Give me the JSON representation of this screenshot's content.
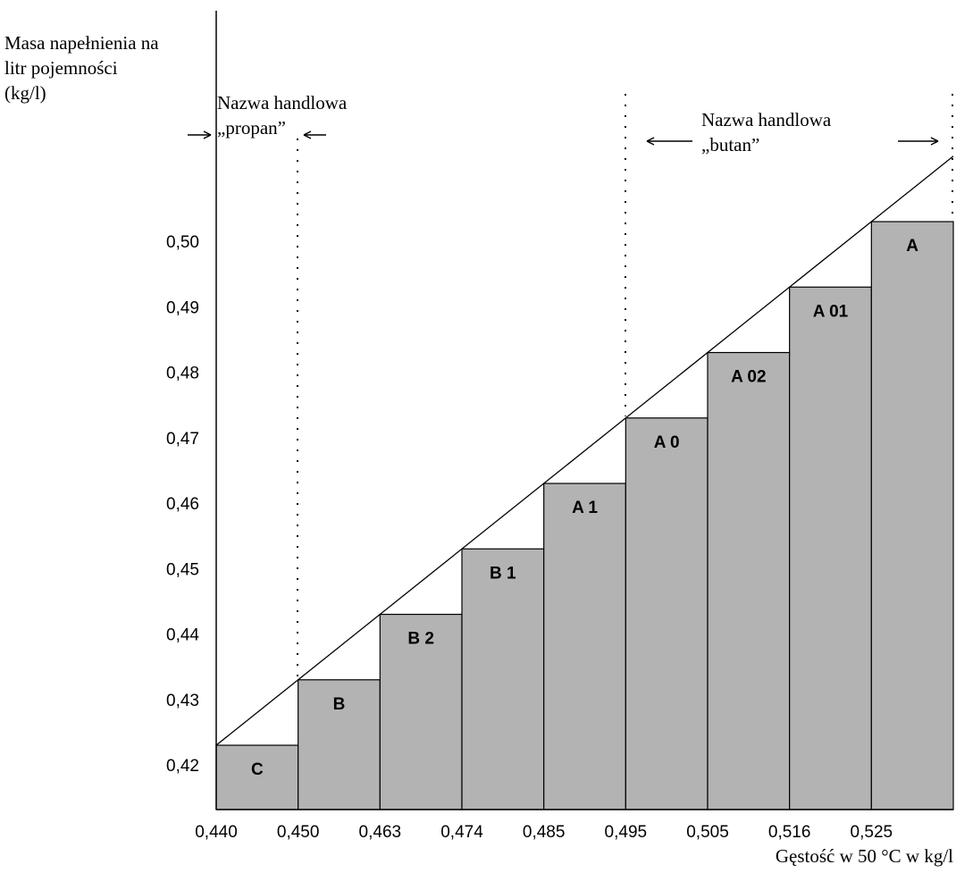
{
  "chart_data": {
    "type": "bar",
    "ylabel_lines": [
      "Masa napełnienia na",
      "litr pojemności",
      "(kg/l)"
    ],
    "xlabel": "Gęstość w 50 °C w kg/l",
    "x_tick_labels": [
      "0,440",
      "0,450",
      "0,463",
      "0,474",
      "0,485",
      "0,495",
      "0,505",
      "0,516",
      "0,525"
    ],
    "y_tick_labels": [
      "0,42",
      "0,43",
      "0,44",
      "0,45",
      "0,46",
      "0,47",
      "0,48",
      "0,49",
      "0,50"
    ],
    "ylim": [
      0.415,
      0.52
    ],
    "bars": [
      {
        "label": "C",
        "value": 0.423
      },
      {
        "label": "B",
        "value": 0.433
      },
      {
        "label": "B 2",
        "value": 0.443
      },
      {
        "label": "B 1",
        "value": 0.453
      },
      {
        "label": "A 1",
        "value": 0.463
      },
      {
        "label": "A 0",
        "value": 0.473
      },
      {
        "label": "A 02",
        "value": 0.483
      },
      {
        "label": "A 01",
        "value": 0.493
      },
      {
        "label": "A",
        "value": 0.503
      }
    ],
    "diagonal": {
      "y_start": 0.423,
      "y_end": 0.513
    },
    "annotations": {
      "propan_lines": [
        "Nazwa handlowa",
        "„propan”"
      ],
      "butan_lines": [
        "Nazwa handlowa",
        "„butan”"
      ]
    },
    "bar_fill": "#b3b3b3",
    "line_color": "#000000",
    "grid": false
  }
}
